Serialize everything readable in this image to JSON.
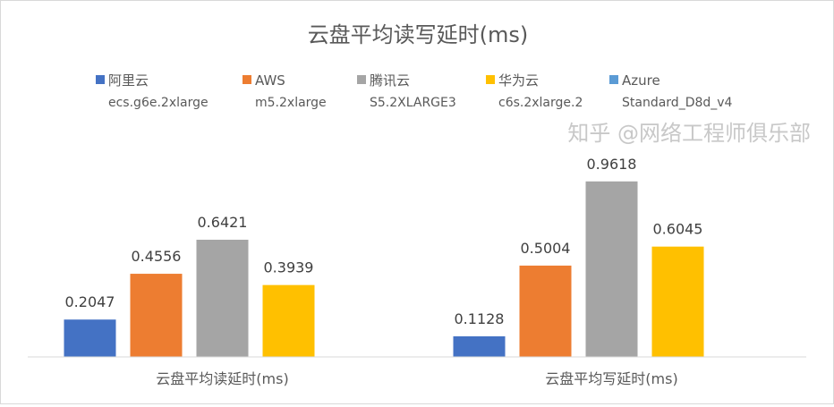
{
  "chart_data": {
    "type": "bar",
    "title": "云盘平均读写延时(ms)",
    "categories": [
      "云盘平均读延时(ms)",
      "云盘平均写延时(ms)"
    ],
    "series": [
      {
        "name": "阿里云",
        "sub": "ecs.g6e.2xlarge",
        "color": "#4472C4",
        "values": [
          0.2047,
          0.1128
        ]
      },
      {
        "name": "AWS",
        "sub": "m5.2xlarge",
        "color": "#ED7D31",
        "values": [
          0.4556,
          0.5004
        ]
      },
      {
        "name": "腾讯云",
        "sub": "S5.2XLARGE3",
        "color": "#A5A5A5",
        "values": [
          0.6421,
          0.9618
        ]
      },
      {
        "name": "华为云",
        "sub": "c6s.2xlarge.2",
        "color": "#FFC000",
        "values": [
          0.3939,
          0.6045
        ]
      },
      {
        "name": "Azure",
        "sub": "Standard_D8d_v4",
        "color": "#5B9BD5",
        "values": [
          null,
          null
        ]
      }
    ],
    "ylim": [
      0,
      1.0
    ],
    "grid": false,
    "legend_position": "top"
  },
  "watermark": "知乎 @网络工程师俱乐部"
}
